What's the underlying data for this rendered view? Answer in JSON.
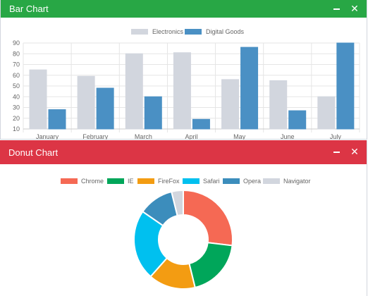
{
  "bar_panel": {
    "title": "Bar Chart",
    "header_color": "#28a745"
  },
  "donut_panel": {
    "title": "Donut Chart",
    "header_color": "#dc3545"
  },
  "chart_data": [
    {
      "type": "bar",
      "title": "",
      "categories": [
        "January",
        "February",
        "March",
        "April",
        "May",
        "June",
        "July"
      ],
      "series": [
        {
          "name": "Electronics",
          "color": "#d2d6de",
          "values": [
            65,
            59,
            80,
            81,
            56,
            55,
            40
          ]
        },
        {
          "name": "Digital Goods",
          "color": "#4a90c4",
          "values": [
            28,
            48,
            40,
            19,
            86,
            27,
            90
          ]
        }
      ],
      "ylim": [
        10,
        90
      ],
      "yticks": [
        10,
        20,
        30,
        40,
        50,
        60,
        70,
        80,
        90
      ],
      "grid": true,
      "legend": "top"
    },
    {
      "type": "pie",
      "donut": true,
      "title": "",
      "labels": [
        "Chrome",
        "IE",
        "FireFox",
        "Safari",
        "Opera",
        "Navigator"
      ],
      "values": [
        700,
        500,
        400,
        600,
        300,
        100
      ],
      "colors": [
        "#f56954",
        "#00a65a",
        "#f39c12",
        "#00c0ef",
        "#3c8dbc",
        "#d2d6de"
      ],
      "legend": "top"
    }
  ]
}
